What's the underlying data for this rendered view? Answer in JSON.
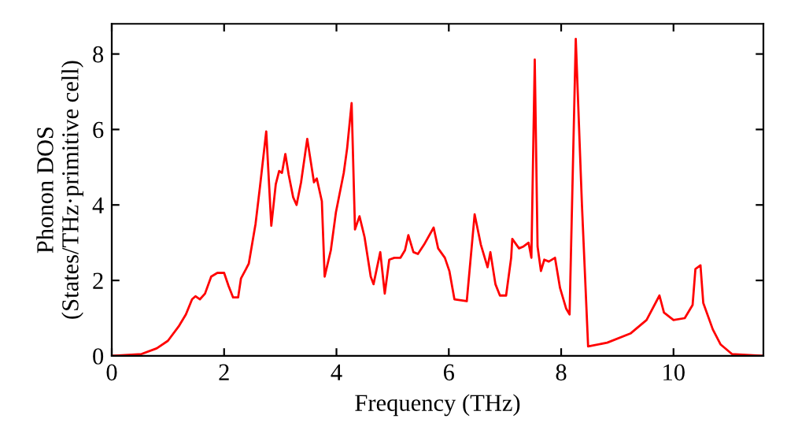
{
  "chart_data": {
    "type": "line",
    "xlabel": "Frequency (THz)",
    "ylabel": "Phonon DOS\n(States/THz·primitive cell)",
    "xlim": [
      0,
      11.6
    ],
    "ylim": [
      0,
      8.8
    ],
    "xticks": [
      0,
      2,
      4,
      6,
      8,
      10
    ],
    "yticks": [
      0,
      2,
      4,
      6,
      8
    ],
    "grid": false,
    "marker": "none",
    "line_style": "solid",
    "series": [
      {
        "color": "#ff0000",
        "x": [
          0,
          0.53,
          0.8,
          1.0,
          1.2,
          1.32,
          1.43,
          1.49,
          1.57,
          1.66,
          1.77,
          1.88,
          2.0,
          2.08,
          2.16,
          2.25,
          2.3,
          2.39,
          2.44,
          2.56,
          2.64,
          2.75,
          2.84,
          2.92,
          2.98,
          3.03,
          3.09,
          3.15,
          3.23,
          3.29,
          3.37,
          3.48,
          3.6,
          3.65,
          3.74,
          3.79,
          3.9,
          3.99,
          4.13,
          4.19,
          4.27,
          4.33,
          4.41,
          4.5,
          4.61,
          4.66,
          4.78,
          4.86,
          4.94,
          5.03,
          5.14,
          5.22,
          5.28,
          5.37,
          5.45,
          5.56,
          5.73,
          5.81,
          5.93,
          6.01,
          6.1,
          6.32,
          6.46,
          6.57,
          6.69,
          6.74,
          6.83,
          6.91,
          7.02,
          7.11,
          7.13,
          7.25,
          7.33,
          7.42,
          7.47,
          7.53,
          7.58,
          7.64,
          7.7,
          7.78,
          7.89,
          7.98,
          8.09,
          8.15,
          8.26,
          8.37,
          8.48,
          8.82,
          9.24,
          9.52,
          9.75,
          9.83,
          10.0,
          10.2,
          10.34,
          10.39,
          10.48,
          10.53,
          10.7,
          10.84,
          11.04,
          11.6
        ],
        "values": [
          0,
          0.05,
          0.2,
          0.4,
          0.8,
          1.1,
          1.5,
          1.58,
          1.5,
          1.65,
          2.1,
          2.2,
          2.2,
          1.85,
          1.55,
          1.55,
          2.05,
          2.3,
          2.45,
          3.5,
          4.5,
          5.95,
          3.45,
          4.55,
          4.9,
          4.85,
          5.35,
          4.8,
          4.2,
          4.0,
          4.6,
          5.75,
          4.6,
          4.7,
          4.1,
          2.1,
          2.8,
          3.8,
          4.85,
          5.5,
          6.7,
          3.35,
          3.7,
          3.15,
          2.1,
          1.9,
          2.75,
          1.65,
          2.55,
          2.6,
          2.6,
          2.8,
          3.2,
          2.75,
          2.7,
          2.95,
          3.4,
          2.85,
          2.6,
          2.25,
          1.5,
          1.45,
          3.75,
          2.95,
          2.35,
          2.75,
          1.9,
          1.6,
          1.6,
          2.6,
          3.1,
          2.85,
          2.9,
          3.0,
          2.6,
          7.85,
          2.9,
          2.25,
          2.55,
          2.5,
          2.6,
          1.8,
          1.25,
          1.1,
          8.4,
          4.0,
          0.25,
          0.35,
          0.6,
          0.95,
          1.6,
          1.15,
          0.95,
          1.0,
          1.35,
          2.3,
          2.4,
          1.4,
          0.7,
          0.3,
          0.05,
          0
        ]
      }
    ]
  }
}
